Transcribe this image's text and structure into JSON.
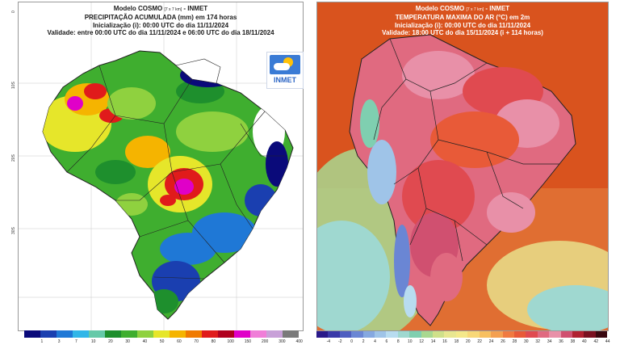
{
  "left_map": {
    "title_line1": "Modelo COSMO",
    "title_small": "[7 x 7 km]",
    "title_suffix": "- INMET",
    "title_line2": "PRECIPITAÇÃO ACUMULADA (mm) em 174 horas",
    "title_line3": "Inicialização (i): 00:00 UTC do dia 11/11/2024",
    "title_line4": "Validade: entre 00:00 UTC do dia 11/11/2024 e 06:00 UTC do dia 18/11/2024",
    "logo_text": "INMET",
    "lat_ticks": [
      "0",
      "10S",
      "20S",
      "30S"
    ],
    "colorbar": {
      "labels": [
        "1",
        "3",
        "7",
        "10",
        "20",
        "30",
        "40",
        "50",
        "60",
        "70",
        "80",
        "100",
        "150",
        "200",
        "300",
        "400"
      ],
      "colors": [
        "#0a0a7a",
        "#1a3fb0",
        "#1f78d6",
        "#31b6e8",
        "#65c9a8",
        "#1e8f2d",
        "#3fae2f",
        "#8fd13f",
        "#e6e62a",
        "#f5b400",
        "#f07a00",
        "#e01b1b",
        "#b0001e",
        "#e000c8",
        "#f07ed8",
        "#c8a0d8",
        "#7a7a7a"
      ]
    }
  },
  "right_map": {
    "title_line1": "Modelo COSMO",
    "title_small": "[7 x 7 km]",
    "title_suffix": "- INMET",
    "title_line2": "TEMPERATURA MAXIMA DO AR (°C) em 2m",
    "title_line3": "Inicialização (i): 00:00 UTC do dia 11/11/2024",
    "title_line4": "Validade: 18:00 UTC do dia 15/11/2024 (i + 114 horas)",
    "colorbar": {
      "labels": [
        "-4",
        "-2",
        "0",
        "2",
        "4",
        "6",
        "8",
        "10",
        "12",
        "14",
        "16",
        "18",
        "20",
        "22",
        "24",
        "26",
        "28",
        "30",
        "32",
        "34",
        "36",
        "38",
        "40",
        "42",
        "44"
      ],
      "colors": [
        "#2a1a8a",
        "#3a3aa8",
        "#4f5fc0",
        "#6a86d4",
        "#85a8e0",
        "#9fc4e8",
        "#b8dcf0",
        "#9fd8d0",
        "#7fcfb0",
        "#a8d890",
        "#cfe08a",
        "#e8e690",
        "#f4e88a",
        "#f8d878",
        "#f8c060",
        "#f4a050",
        "#f07a40",
        "#e85a38",
        "#e04a50",
        "#e06a80",
        "#e890a8",
        "#d05070",
        "#b02030",
        "#7a1020",
        "#3a0810"
      ]
    }
  }
}
